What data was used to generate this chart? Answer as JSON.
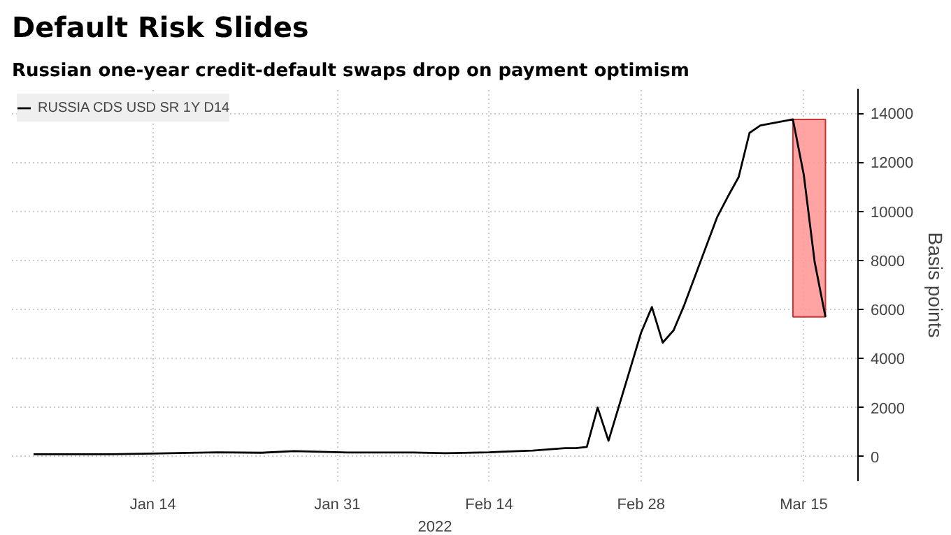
{
  "chart_data": {
    "type": "line",
    "title": "Default Risk Slides",
    "subtitle": "Russian one-year credit-default swaps drop on payment optimism",
    "xlabel": "2022",
    "ylabel": "Basis points",
    "x": [
      "2022-01-03",
      "2022-01-10",
      "2022-01-14",
      "2022-01-20",
      "2022-01-24",
      "2022-01-27",
      "2022-02-01",
      "2022-02-07",
      "2022-02-10",
      "2022-02-14",
      "2022-02-15",
      "2022-02-18",
      "2022-02-21",
      "2022-02-22",
      "2022-02-23",
      "2022-02-24",
      "2022-02-25",
      "2022-02-28",
      "2022-03-01",
      "2022-03-02",
      "2022-03-03",
      "2022-03-04",
      "2022-03-07",
      "2022-03-08",
      "2022-03-09",
      "2022-03-10",
      "2022-03-11",
      "2022-03-14",
      "2022-03-15",
      "2022-03-16",
      "2022-03-17"
    ],
    "series": [
      {
        "name": "RUSSIA CDS USD SR 1Y D14",
        "color": "#000000",
        "values": [
          100,
          100,
          130,
          180,
          160,
          230,
          170,
          170,
          140,
          180,
          200,
          250,
          350,
          350,
          400,
          2000,
          650,
          5050,
          6100,
          4650,
          5150,
          6200,
          9750,
          10600,
          11400,
          13200,
          13500,
          13750,
          11500,
          7950,
          5700
        ]
      }
    ],
    "xlim": [
      "2022-01-01",
      "2022-03-20"
    ],
    "xticks": [
      {
        "value": "2022-01-14",
        "label": "Jan 14"
      },
      {
        "value": "2022-01-31",
        "label": "Jan 31"
      },
      {
        "value": "2022-02-14",
        "label": "Feb 14"
      },
      {
        "value": "2022-02-28",
        "label": "Feb 28"
      },
      {
        "value": "2022-03-15",
        "label": "Mar 15"
      }
    ],
    "ylim": [
      -1000,
      15000
    ],
    "yticks": [
      0,
      2000,
      4000,
      6000,
      8000,
      10000,
      12000,
      14000
    ],
    "bands": [
      {
        "axis": "x",
        "from": "2022-03-14",
        "to": "2022-03-17",
        "color": "#ff9999"
      }
    ],
    "grid": true,
    "legend": "top left",
    "line_style": "solid"
  }
}
